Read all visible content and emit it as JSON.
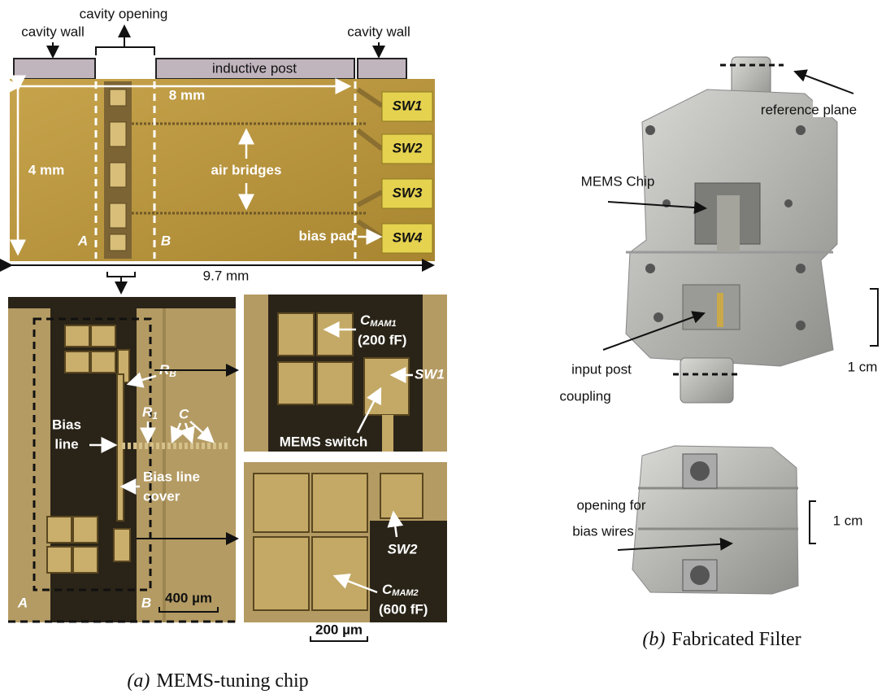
{
  "panel_a": {
    "overview": {
      "cavity_wall_left": "cavity wall",
      "cavity_opening": "cavity opening",
      "cavity_wall_right": "cavity wall",
      "inductive_post": "inductive post",
      "length": "8 mm",
      "width": "4 mm",
      "air_bridges": "air bridges",
      "switches": [
        "SW1",
        "SW2",
        "SW3",
        "SW4"
      ],
      "plane_a": "A",
      "plane_b": "B",
      "bias_pad": "bias pad",
      "total_length": "9.7 mm"
    },
    "zoom_left": {
      "r_b": {
        "main": "R",
        "sub": "B"
      },
      "r_1": {
        "main": "R",
        "sub": "1"
      },
      "c": "C",
      "bias_line": [
        "Bias",
        "line"
      ],
      "bias_line_cover": [
        "Bias line",
        "cover"
      ],
      "plane_a": "A",
      "plane_b": "B",
      "scale": "400 µm"
    },
    "zoom_top": {
      "capacitor": {
        "main": "C",
        "sub": "MAM1"
      },
      "capacitance": "(200 fF)",
      "switch": "SW1",
      "mems_switch": "MEMS switch"
    },
    "zoom_bottom": {
      "switch": "SW2",
      "capacitor": {
        "main": "C",
        "sub": "MAM2"
      },
      "capacitance": "(600 fF)"
    },
    "zoom_scale": "200 µm",
    "caption": {
      "label": "(a)",
      "text": "MEMS-tuning chip"
    }
  },
  "panel_b": {
    "reference_plane": "reference plane",
    "mems_chip": "MEMS Chip",
    "input_post_coupling": [
      "input post",
      "coupling"
    ],
    "scale_top": "1 cm",
    "opening_for_bias_wires": [
      "opening for",
      "bias wires"
    ],
    "scale_bottom": "1 cm",
    "caption": {
      "label": "(b)",
      "text": "Fabricated Filter"
    }
  }
}
